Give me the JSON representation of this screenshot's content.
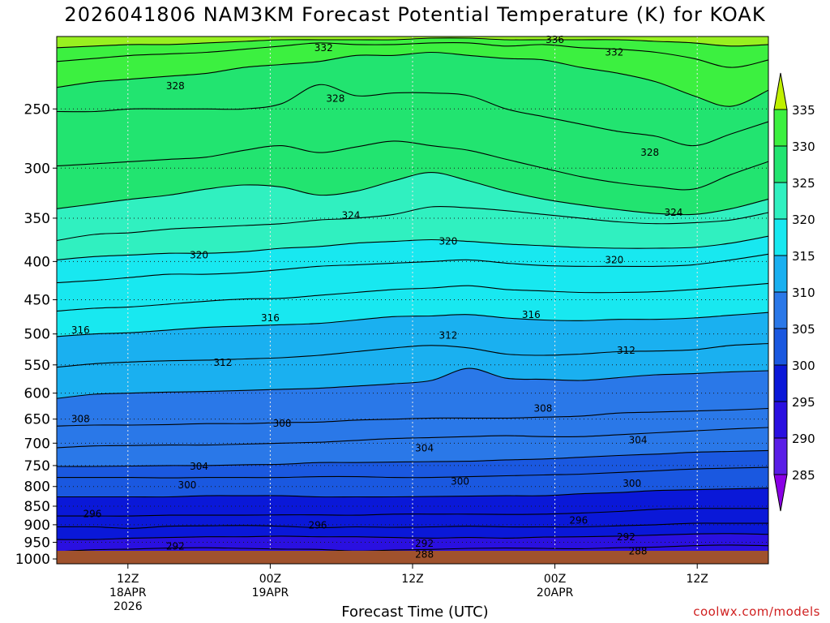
{
  "title": "2026041806 NAM3KM Forecast Potential Temperature (K) for KOAK",
  "xlabel": "Forecast Time (UTC)",
  "credit": "coolwx.com/models",
  "chart_data": {
    "type": "heatmap",
    "ylabel": "",
    "y_scale": "log-pressure",
    "y_reversed": true,
    "y_ticks": [
      250,
      300,
      350,
      400,
      450,
      500,
      550,
      600,
      650,
      700,
      750,
      800,
      850,
      900,
      950,
      1000
    ],
    "ylim_hPa": [
      200,
      1015
    ],
    "x_ticks": [
      {
        "hour": 6,
        "lines": [
          "12Z",
          "18APR",
          "2026"
        ]
      },
      {
        "hour": 18,
        "lines": [
          "00Z",
          "19APR"
        ]
      },
      {
        "hour": 30,
        "lines": [
          "12Z"
        ]
      },
      {
        "hour": 42,
        "lines": [
          "00Z",
          "20APR"
        ]
      },
      {
        "hour": 54,
        "lines": [
          "12Z"
        ]
      }
    ],
    "xlim_hours": [
      0,
      60
    ],
    "grid": true,
    "colorbar": {
      "levels": [
        285,
        290,
        295,
        300,
        305,
        310,
        315,
        320,
        325,
        330,
        335
      ],
      "colors": [
        "#8a00e6",
        "#5a1ee6",
        "#2a10e0",
        "#0a18d8",
        "#1a58e0",
        "#2a78e8",
        "#1ab0f0",
        "#18e8f0",
        "#30f0c0",
        "#22e470",
        "#3cf040",
        "#98f020",
        "#bff000"
      ]
    },
    "ground_color": "#a0522d",
    "contour_interval": 2,
    "contours": [
      {
        "theta": 288,
        "p": [
          1005,
          1003,
          1003,
          1002,
          1002,
          1003,
          1003,
          1003,
          1002,
          1002,
          1002,
          1001,
          1001,
          1001,
          1001,
          1000,
          998,
          998,
          997,
          997
        ]
      },
      {
        "theta": 290,
        "p": [
          997,
          997,
          997,
          998,
          997,
          998,
          997,
          994,
          994,
          993,
          990,
          990,
          991,
          988,
          989,
          986,
          983,
          981,
          983,
          984
        ]
      },
      {
        "theta": 292,
        "p": [
          978,
          972,
          970,
          967,
          966,
          968,
          970,
          971,
          976,
          973,
          971,
          968,
          967,
          968,
          969,
          966,
          964,
          960,
          958,
          960
        ]
      },
      {
        "theta": 294,
        "p": [
          942,
          942,
          938,
          936,
          934,
          934,
          932,
          934,
          934,
          936,
          938,
          936,
          938,
          935,
          934,
          932,
          929,
          926,
          925,
          927
        ]
      },
      {
        "theta": 296,
        "p": [
          906,
          906,
          910,
          904,
          903,
          902,
          904,
          908,
          906,
          907,
          906,
          904,
          906,
          906,
          906,
          903,
          900,
          896,
          896,
          896
        ]
      },
      {
        "theta": 298,
        "p": [
          876,
          876,
          876,
          874,
          874,
          874,
          873,
          873,
          874,
          871,
          871,
          871,
          872,
          871,
          868,
          864,
          858,
          856,
          856,
          856
        ]
      },
      {
        "theta": 300,
        "p": [
          826,
          826,
          826,
          826,
          823,
          823,
          823,
          826,
          826,
          826,
          825,
          824,
          823,
          823,
          818,
          815,
          810,
          808,
          806,
          804
        ]
      },
      {
        "theta": 302,
        "p": [
          778,
          778,
          778,
          779,
          778,
          778,
          778,
          776,
          776,
          778,
          778,
          776,
          774,
          772,
          770,
          766,
          762,
          758,
          756,
          754
        ]
      },
      {
        "theta": 304,
        "p": [
          752,
          752,
          751,
          750,
          750,
          748,
          747,
          743,
          743,
          742,
          741,
          740,
          737,
          735,
          731,
          727,
          724,
          720,
          718,
          716
        ]
      },
      {
        "theta": 306,
        "p": [
          710,
          706,
          705,
          704,
          704,
          702,
          700,
          698,
          694,
          690,
          688,
          686,
          684,
          686,
          686,
          682,
          678,
          674,
          670,
          667
        ]
      },
      {
        "theta": 308,
        "p": [
          664,
          662,
          662,
          661,
          659,
          659,
          657,
          656,
          652,
          650,
          648,
          648,
          648,
          646,
          644,
          638,
          636,
          634,
          632,
          629
        ]
      },
      {
        "theta": 310,
        "p": [
          610,
          602,
          600,
          598,
          597,
          595,
          593,
          591,
          587,
          583,
          577,
          556,
          573,
          575,
          577,
          572,
          567,
          565,
          562,
          560
        ]
      },
      {
        "theta": 312,
        "p": [
          554,
          548,
          545,
          543,
          542,
          540,
          538,
          534,
          528,
          522,
          518,
          522,
          532,
          534,
          532,
          528,
          527,
          525,
          518,
          515
        ]
      },
      {
        "theta": 314,
        "p": [
          504,
          500,
          498,
          494,
          490,
          488,
          486,
          484,
          479,
          474,
          473,
          471,
          476,
          479,
          480,
          478,
          478,
          476,
          472,
          468
        ]
      },
      {
        "theta": 316,
        "p": [
          466,
          462,
          460,
          456,
          452,
          449,
          448,
          444,
          440,
          436,
          434,
          431,
          436,
          438,
          440,
          440,
          439,
          436,
          432,
          428
        ]
      },
      {
        "theta": 318,
        "p": [
          427,
          424,
          420,
          416,
          416,
          414,
          410,
          406,
          404,
          402,
          400,
          398,
          402,
          405,
          406,
          406,
          406,
          404,
          398,
          391
        ]
      },
      {
        "theta": 320,
        "p": [
          398,
          394,
          392,
          390,
          390,
          388,
          384,
          382,
          378,
          376,
          374,
          376,
          379,
          381,
          383,
          384,
          384,
          383,
          378,
          370
        ]
      },
      {
        "theta": 322,
        "p": [
          375,
          368,
          366,
          362,
          360,
          358,
          356,
          352,
          350,
          346,
          338,
          339,
          342,
          346,
          350,
          354,
          356,
          355,
          352,
          344
        ]
      },
      {
        "theta": 324,
        "p": [
          340,
          335,
          330,
          326,
          320,
          316,
          318,
          326,
          322,
          312,
          304,
          312,
          322,
          330,
          336,
          341,
          345,
          346,
          340,
          330
        ]
      },
      {
        "theta": 326,
        "p": [
          298,
          296,
          294,
          292,
          290,
          284,
          280,
          286,
          281,
          276,
          280,
          284,
          292,
          300,
          308,
          314,
          318,
          320,
          306,
          294
        ]
      },
      {
        "theta": 328,
        "p": [
          252,
          252,
          250,
          250,
          250,
          250,
          246,
          232,
          240,
          238,
          238,
          240,
          250,
          256,
          262,
          268,
          272,
          280,
          270,
          260
        ]
      },
      {
        "theta": 330,
        "p": [
          234,
          230,
          228,
          226,
          224,
          220,
          218,
          216,
          212,
          212,
          210,
          212,
          214,
          215,
          220,
          224,
          230,
          240,
          248,
          236
        ]
      },
      {
        "theta": 332,
        "p": [
          216,
          214,
          212,
          211,
          210,
          208,
          206,
          204,
          205,
          205,
          204,
          204,
          206,
          205,
          207,
          208,
          210,
          214,
          220,
          215
        ]
      },
      {
        "theta": 334,
        "p": [
          207,
          206,
          205,
          205,
          204,
          203,
          202,
          202,
          202,
          202,
          201,
          201,
          202,
          202,
          202,
          202,
          203,
          204,
          206,
          205
        ]
      }
    ],
    "contour_labels": [
      {
        "text": "328",
        "hour": 10.0,
        "p": 233
      },
      {
        "text": "328",
        "hour": 23.5,
        "p": 242
      },
      {
        "text": "332",
        "hour": 22.5,
        "p": 207
      },
      {
        "text": "336",
        "hour": 42.0,
        "p": 202
      },
      {
        "text": "332",
        "hour": 47.0,
        "p": 210
      },
      {
        "text": "328",
        "hour": 50.0,
        "p": 286
      },
      {
        "text": "324",
        "hour": 24.8,
        "p": 347
      },
      {
        "text": "324",
        "hour": 52.0,
        "p": 344
      },
      {
        "text": "320",
        "hour": 12.0,
        "p": 392
      },
      {
        "text": "320",
        "hour": 33.0,
        "p": 376
      },
      {
        "text": "320",
        "hour": 47.0,
        "p": 398
      },
      {
        "text": "316",
        "hour": 2.0,
        "p": 494
      },
      {
        "text": "316",
        "hour": 18.0,
        "p": 476
      },
      {
        "text": "316",
        "hour": 40.0,
        "p": 471
      },
      {
        "text": "312",
        "hour": 14.0,
        "p": 546
      },
      {
        "text": "312",
        "hour": 33.0,
        "p": 502
      },
      {
        "text": "312",
        "hour": 48.0,
        "p": 526
      },
      {
        "text": "308",
        "hour": 2.0,
        "p": 650
      },
      {
        "text": "308",
        "hour": 19.0,
        "p": 659
      },
      {
        "text": "308",
        "hour": 41.0,
        "p": 629
      },
      {
        "text": "304",
        "hour": 12.0,
        "p": 752
      },
      {
        "text": "304",
        "hour": 31.0,
        "p": 711
      },
      {
        "text": "304",
        "hour": 49.0,
        "p": 693
      },
      {
        "text": "300",
        "hour": 11.0,
        "p": 797
      },
      {
        "text": "300",
        "hour": 34.0,
        "p": 788
      },
      {
        "text": "300",
        "hour": 48.5,
        "p": 793
      },
      {
        "text": "296",
        "hour": 3.0,
        "p": 870
      },
      {
        "text": "296",
        "hour": 22.0,
        "p": 901
      },
      {
        "text": "296",
        "hour": 44.0,
        "p": 888
      },
      {
        "text": "292",
        "hour": 10.0,
        "p": 962
      },
      {
        "text": "292",
        "hour": 31.0,
        "p": 953
      },
      {
        "text": "292",
        "hour": 48.0,
        "p": 935
      },
      {
        "text": "288",
        "hour": 31.0,
        "p": 986
      },
      {
        "text": "288",
        "hour": 49.0,
        "p": 976
      }
    ]
  }
}
